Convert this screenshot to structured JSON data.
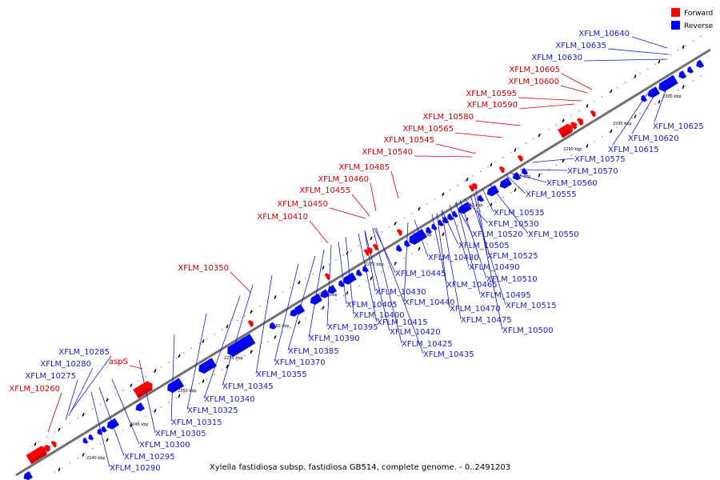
{
  "colors": {
    "forward": "#ff0000",
    "reverse": "#0000ff",
    "forward_label": "#cc0000",
    "reverse_label": "#1a1ac8",
    "backbone": "#707070",
    "tick": "#000000",
    "dot": "#9a9a9a"
  },
  "legend": {
    "forward": "Forward",
    "reverse": "Reverse"
  },
  "caption": "Xylella fastidiosa subsp. fastidiosa GB514, complete genome. - 0..2491203",
  "kbp_marks": [
    "2240 kbp",
    "2245 kbp",
    "2250 kbp",
    "2255 kbp",
    "2260 kbp",
    "2265 kbp",
    "2270 kbp",
    "2275 kbp",
    "2280 kbp",
    "2285 kbp",
    "2290 kbp",
    "2295 kbp",
    "2300 kbp"
  ],
  "forward_labels": [
    "XFLM_10605",
    "XFLM_10600",
    "XFLM_10595",
    "XFLM_10590",
    "XFLM_10580",
    "XFLM_10565",
    "XFLM_10545",
    "XFLM_10540",
    "XFLM_10485",
    "XFLM_10460",
    "XFLM_10455",
    "XFLM_10450",
    "XFLM_10410",
    "XFLM_10350",
    "aspS",
    "XFLM_10260"
  ],
  "reverse_labels": [
    "XFLM_10640",
    "XFLM_10635",
    "XFLM_10630",
    "XFLM_10285",
    "XFLM_10280",
    "XFLM_10275",
    "XFLM_10625",
    "XFLM_10620",
    "XFLM_10615",
    "XFLM_10575",
    "XFLM_10570",
    "XFLM_10560",
    "XFLM_10555",
    "XFLM_10535",
    "XFLM_10530",
    "XFLM_10550",
    "XFLM_10520",
    "XFLM_10505",
    "XFLM_10525",
    "XFLM_10480",
    "XFLM_10490",
    "XFLM_10510",
    "XFLM_10445",
    "XFLM_10465",
    "XFLM_10495",
    "XFLM_10430",
    "XFLM_10440",
    "XFLM_10470",
    "XFLM_10515",
    "XFLM_10405",
    "XFLM_10475",
    "XFLM_10400",
    "XFLM_10415",
    "XFLM_10500",
    "XFLM_10395",
    "XFLM_10420",
    "XFLM_10390",
    "XFLM_10425",
    "XFLM_10385",
    "XFLM_10435",
    "XFLM_10370",
    "XFLM_10355",
    "XFLM_10345",
    "XFLM_10340",
    "XFLM_10325",
    "XFLM_10315",
    "XFLM_10305",
    "XFLM_10300",
    "XFLM_10295",
    "XFLM_10290"
  ]
}
